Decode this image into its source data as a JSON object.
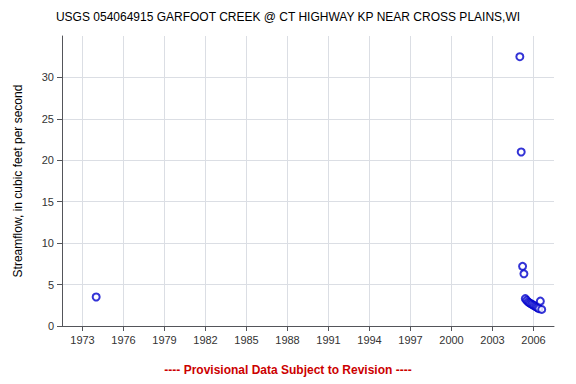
{
  "chart_data": {
    "type": "scatter",
    "title": "USGS 054064915 GARFOOT CREEK @ CT HIGHWAY KP NEAR CROSS PLAINS,WI",
    "ylabel": "Streamflow, in cubic feet per second",
    "annotation": "---- Provisional Data Subject to Revision ----",
    "x": [
      1974.0,
      2005.0,
      2005.1,
      2005.2,
      2005.3,
      2005.4,
      2005.5,
      2005.6,
      2005.7,
      2005.8,
      2005.9,
      2006.0,
      2006.1,
      2006.2,
      2006.3,
      2006.4,
      2006.5,
      2006.6
    ],
    "values": [
      3.5,
      32.5,
      21.0,
      7.2,
      6.3,
      3.3,
      3.1,
      2.9,
      2.8,
      2.7,
      2.6,
      2.5,
      2.4,
      2.3,
      2.2,
      2.1,
      3.0,
      2.0
    ],
    "color": "#0000CC",
    "marker": "circle",
    "xlim": [
      1971.5,
      2007.5
    ],
    "ylim": [
      0,
      35
    ],
    "xticks": [
      1973,
      1976,
      1979,
      1982,
      1985,
      1988,
      1991,
      1994,
      1997,
      2000,
      2003,
      2006
    ],
    "yticks": [
      0,
      5,
      10,
      15,
      20,
      25,
      30
    ],
    "grid": true
  }
}
